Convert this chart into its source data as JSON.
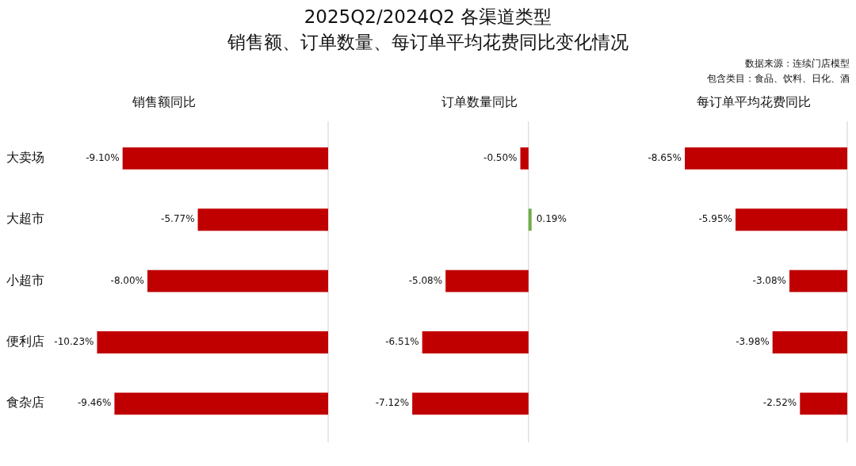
{
  "chart_data": [
    {
      "type": "other",
      "title": "2025Q2/2024Q2 各渠道类型",
      "subtitle": "销售额、订单数量、每订单平均花费同比变化情况",
      "annotations": [
        "数据来源：连续门店模型",
        "包含类目：食品、饮料、日化、酒"
      ]
    },
    {
      "type": "bar",
      "orientation": "horizontal",
      "title": "销售额同比",
      "categories": [
        "大卖场",
        "大超市",
        "小超市",
        "便利店",
        "食杂店"
      ],
      "values": [
        -9.1,
        -5.77,
        -8.0,
        -10.23,
        -9.46
      ],
      "colors": [
        "#c00000",
        "#c00000",
        "#c00000",
        "#c00000",
        "#c00000"
      ],
      "value_labels": [
        "-9.10%",
        "-5.77%",
        "-8.00%",
        "-10.23%",
        "-9.46%"
      ],
      "tick_labels": "y"
    },
    {
      "type": "bar",
      "orientation": "horizontal",
      "title": "订单数量同比",
      "categories": [
        null,
        null,
        null,
        null,
        null
      ],
      "values": [
        -0.5,
        0.19,
        -5.08,
        -6.51,
        -7.12
      ],
      "colors": [
        "#c00000",
        "#70ad47",
        "#c00000",
        "#c00000",
        "#c00000"
      ],
      "value_labels": [
        "-0.50%",
        "0.19%",
        "-5.08%",
        "-6.51%",
        "-7.12%"
      ],
      "tick_labels": false
    },
    {
      "type": "bar",
      "orientation": "horizontal",
      "title": "每订单平均花费同比",
      "categories": [
        null,
        null,
        null,
        null,
        null
      ],
      "values": [
        -8.65,
        -5.95,
        -3.08,
        -3.98,
        -2.52
      ],
      "colors": [
        "#c00000",
        "#c00000",
        "#c00000",
        "#c00000",
        "#c00000"
      ],
      "value_labels": [
        "-8.65%",
        "-5.95%",
        "-3.08%",
        "-3.98%",
        "-2.52%"
      ],
      "tick_labels": false
    }
  ]
}
